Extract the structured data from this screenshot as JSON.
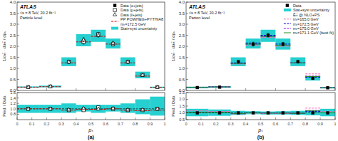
{
  "chart_data": [
    {
      "type": "errorbar",
      "y_label": "1/σₜₜ̄ · dσₜₜ̄ / dpₛ",
      "annotations": [
        "ATLAS",
        "√s = 8 TeV, 20.2 fb⁻¹",
        "Particle level"
      ],
      "xlim": [
        0,
        1
      ],
      "ylim": [
        0,
        4
      ],
      "xticks": [
        0,
        0.2,
        0.4,
        0.6,
        0.8,
        1
      ],
      "yticks": [
        {
          "value": 0,
          "label": "0.0"
        },
        0.5,
        {
          "value": 1,
          "label": "1.0"
        },
        1.5,
        {
          "value": 2,
          "label": "2.0"
        },
        2.5,
        {
          "value": 3,
          "label": "3.0"
        },
        3.5,
        {
          "value": 4,
          "label": "4.0"
        }
      ],
      "tick_labels": "y",
      "legend": "upper right",
      "series": [
        {
          "name": "Data (e+jets)",
          "type": "scatter",
          "marker": "square",
          "color": "#000000",
          "x": [
            0.075,
            0.225,
            0.35,
            0.45,
            0.55,
            0.65,
            0.75,
            0.85,
            0.95
          ],
          "values": [
            0.15,
            0.18,
            1.3,
            2.25,
            2.5,
            2.1,
            1.3,
            0.7,
            0.15
          ],
          "errors": [
            0.02,
            0.02,
            0.07,
            0.1,
            0.08,
            0.08,
            0.07,
            0.04,
            0.02
          ]
        },
        {
          "name": "Data (μ+jets)",
          "type": "scatter",
          "marker": "open-square",
          "color": "#000000",
          "x": [
            0.075,
            0.225,
            0.35,
            0.45,
            0.55,
            0.65,
            0.75,
            0.85,
            0.95
          ],
          "values": [
            0.15,
            0.18,
            1.3,
            2.2,
            2.55,
            2.1,
            1.3,
            0.7,
            0.15
          ],
          "errors": [
            0.02,
            0.02,
            0.07,
            0.1,
            0.08,
            0.08,
            0.07,
            0.04,
            0.02
          ]
        },
        {
          "name": "Data (ℓ+jets)",
          "type": "scatter",
          "marker": "open-triangle",
          "color": "#000000",
          "x": [
            0.075,
            0.225,
            0.35,
            0.45,
            0.55,
            0.65,
            0.75,
            0.85,
            0.95
          ],
          "values": [
            0.15,
            0.18,
            1.3,
            2.3,
            2.5,
            2.15,
            1.3,
            0.7,
            0.15
          ],
          "errors": [
            0.015,
            0.015,
            0.06,
            0.09,
            0.07,
            0.07,
            0.06,
            0.035,
            0.015
          ]
        },
        {
          "name": "PP POWHEG+PYTHIA8\nmₜ=172.5 GeV",
          "type": "step",
          "line_style": "dashed",
          "color": "#CC0000",
          "bins": [
            0.0,
            0.15,
            0.3,
            0.4,
            0.5,
            0.6,
            0.7,
            0.8,
            0.9,
            1.0
          ],
          "values": [
            0.15,
            0.17,
            1.25,
            2.2,
            2.45,
            2.1,
            1.25,
            0.65,
            0.14
          ]
        },
        {
          "name": "Stat+syst uncertainty",
          "type": "band",
          "color": "#00C8C8",
          "bins": [
            0.0,
            0.15,
            0.3,
            0.4,
            0.5,
            0.6,
            0.7,
            0.8,
            0.9,
            1.0
          ],
          "low": [
            0.12,
            0.14,
            1.1,
            2.0,
            2.2,
            1.9,
            1.1,
            0.55,
            0.11
          ],
          "high": [
            0.18,
            0.22,
            1.5,
            2.55,
            2.75,
            2.35,
            1.5,
            0.85,
            0.17
          ]
        }
      ]
    },
    {
      "type": "errorbar",
      "x_label": "pₛ",
      "y_label": "Pred. / Data",
      "annotations": [
        "(a)"
      ],
      "xlim": [
        0,
        1
      ],
      "ylim": [
        0.6,
        1.6
      ],
      "xticks": [
        0,
        0.1,
        0.2,
        0.3,
        0.4,
        0.5,
        0.6,
        0.7,
        0.8,
        0.9,
        1
      ],
      "yticks": [
        0.8,
        {
          "value": 1,
          "label": "1.0"
        },
        1.2,
        1.4,
        1.6
      ],
      "reference_lines": [
        1.0
      ],
      "series": [
        {
          "type": "scatter",
          "marker": "square",
          "color": "#000000",
          "x": [
            0.075,
            0.225,
            0.35,
            0.45,
            0.55,
            0.65,
            0.75,
            0.85,
            0.95
          ],
          "values": [
            1.0,
            1.0,
            0.95,
            1.0,
            1.05,
            1.0,
            0.95,
            0.95,
            1.0
          ]
        },
        {
          "type": "scatter",
          "marker": "open-square",
          "color": "#000000",
          "x": [
            0.075,
            0.225,
            0.35,
            0.45,
            0.55,
            0.65,
            0.75,
            0.85,
            0.95
          ],
          "values": [
            1.0,
            1.0,
            0.95,
            0.95,
            1.05,
            1.0,
            0.95,
            0.95,
            1.0
          ]
        },
        {
          "type": "scatter",
          "marker": "open-triangle",
          "color": "#000000",
          "x": [
            0.075,
            0.225,
            0.35,
            0.45,
            0.55,
            0.65,
            0.75,
            0.85,
            0.95
          ],
          "values": [
            1.0,
            1.0,
            0.97,
            1.02,
            1.0,
            1.02,
            0.97,
            0.97,
            1.0
          ]
        },
        {
          "type": "step",
          "line_style": "dashed",
          "color": "#CC0000",
          "bins": [
            0.0,
            0.15,
            0.3,
            0.4,
            0.5,
            0.6,
            0.7,
            0.8,
            0.9,
            1.0
          ],
          "values": [
            1.0,
            1.0,
            0.95,
            0.98,
            0.98,
            1.0,
            0.95,
            0.93,
            0.95
          ]
        },
        {
          "type": "band",
          "color": "#00C8C8",
          "bins": [
            0.0,
            0.15,
            0.3,
            0.4,
            0.5,
            0.6,
            0.7,
            0.8,
            0.9,
            1.0
          ],
          "low": [
            0.85,
            0.85,
            0.85,
            0.9,
            0.85,
            0.9,
            0.85,
            0.8,
            0.75
          ],
          "high": [
            1.15,
            1.15,
            1.2,
            1.15,
            1.15,
            1.15,
            1.2,
            1.35,
            1.45
          ]
        }
      ]
    },
    {
      "type": "errorbar",
      "y_label": "1/σₜₜ̄ · dσₜₜ̄ / dpₛ",
      "annotations": [
        "ATLAS",
        "√s = 8 TeV, 20.2 fb⁻¹",
        "Parton level"
      ],
      "xlim": [
        0,
        1
      ],
      "ylim": [
        0,
        4
      ],
      "xticks": [
        0,
        0.2,
        0.4,
        0.6,
        0.8,
        1
      ],
      "yticks": [
        {
          "value": 0,
          "label": "0.0"
        },
        0.5,
        {
          "value": 1,
          "label": "1.0"
        },
        1.5,
        {
          "value": 2,
          "label": "2.0"
        },
        2.5,
        {
          "value": 3,
          "label": "3.0"
        },
        3.5,
        {
          "value": 4,
          "label": "4.0"
        }
      ],
      "tick_labels": "y",
      "legend": "upper right",
      "series": [
        {
          "name": "Data",
          "type": "scatter",
          "marker": "square",
          "color": "#000000",
          "x": [
            0.075,
            0.225,
            0.35,
            0.45,
            0.55,
            0.65,
            0.75,
            0.85,
            0.95
          ],
          "values": [
            0.13,
            0.15,
            1.3,
            2.1,
            2.5,
            2.1,
            1.3,
            0.55,
            0.12
          ],
          "errors": [
            0.02,
            0.02,
            0.06,
            0.09,
            0.08,
            0.08,
            0.06,
            0.03,
            0.015
          ]
        },
        {
          "name": "Stat+syst uncertainty",
          "type": "band",
          "color": "#00C8C8",
          "bins": [
            0.0,
            0.15,
            0.3,
            0.4,
            0.5,
            0.6,
            0.7,
            0.8,
            0.9,
            1.0
          ],
          "low": [
            0.1,
            0.12,
            1.1,
            1.9,
            2.2,
            1.85,
            1.1,
            0.45,
            0.09
          ],
          "high": [
            0.17,
            0.19,
            1.5,
            2.35,
            2.75,
            2.35,
            1.5,
            0.65,
            0.16
          ]
        },
        {
          "name": "Êₜₜ̄ @ NLO+PS :",
          "type": "text"
        },
        {
          "name": "mₜ=165.0 GeV",
          "type": "step",
          "line_style": "dashed",
          "color": "#FF69B4",
          "bins": [
            0.0,
            0.15,
            0.3,
            0.4,
            0.5,
            0.6,
            0.7,
            0.8,
            0.9,
            1.0
          ],
          "values": [
            0.15,
            0.17,
            1.2,
            2.05,
            2.4,
            2.0,
            1.25,
            0.75,
            0.13
          ]
        },
        {
          "name": "mₜ=172.5 GeV",
          "type": "step",
          "line_style": "dashed",
          "color": "#0000CD",
          "bins": [
            0.0,
            0.15,
            0.3,
            0.4,
            0.5,
            0.6,
            0.7,
            0.8,
            0.9,
            1.0
          ],
          "values": [
            0.14,
            0.16,
            1.25,
            2.15,
            2.5,
            2.1,
            1.25,
            0.6,
            0.12
          ]
        },
        {
          "name": "mₜ=175.0 GeV",
          "type": "step",
          "line_style": "dashed",
          "color": "#8B00FF",
          "bins": [
            0.0,
            0.15,
            0.3,
            0.4,
            0.5,
            0.6,
            0.7,
            0.8,
            0.9,
            1.0
          ],
          "values": [
            0.14,
            0.16,
            1.22,
            2.1,
            2.45,
            2.05,
            1.25,
            0.65,
            0.12
          ]
        },
        {
          "name": "mₜ=171.1 GeV (best fit)",
          "type": "step",
          "line_style": "solid",
          "color": "#228B22",
          "bins": [
            0.0,
            0.15,
            0.3,
            0.4,
            0.5,
            0.6,
            0.7,
            0.8,
            0.9,
            1.0
          ],
          "values": [
            0.14,
            0.16,
            1.22,
            2.1,
            2.45,
            2.05,
            1.25,
            0.63,
            0.12
          ]
        }
      ]
    },
    {
      "type": "errorbar",
      "x_label": "pₛ",
      "y_label": "Pred. / Data",
      "annotations": [
        "(b)"
      ],
      "xlim": [
        0,
        1
      ],
      "ylim": [
        0.5,
        2.5
      ],
      "xticks": [
        0,
        0.1,
        0.2,
        0.3,
        0.4,
        0.5,
        0.6,
        0.7,
        0.8,
        0.9,
        1
      ],
      "yticks": [
        0.5,
        {
          "value": 1,
          "label": "1.0"
        },
        1.5,
        {
          "value": 2,
          "label": "2.0"
        },
        2.5
      ],
      "reference_lines": [
        1.0
      ],
      "series": [
        {
          "type": "scatter",
          "marker": "square",
          "color": "#000000",
          "x": [
            0.075,
            0.225,
            0.35,
            0.45,
            0.55,
            0.65,
            0.75,
            0.85,
            0.95
          ],
          "values": [
            1.0,
            1.0,
            1.0,
            1.0,
            1.0,
            1.0,
            1.0,
            1.0,
            1.0
          ]
        },
        {
          "type": "band",
          "color": "#00C8C8",
          "bins": [
            0.0,
            0.15,
            0.3,
            0.4,
            0.5,
            0.6,
            0.7,
            0.8,
            0.9,
            1.0
          ],
          "low": [
            0.75,
            0.78,
            0.85,
            0.9,
            0.88,
            0.88,
            0.85,
            0.82,
            0.75
          ],
          "high": [
            1.3,
            1.25,
            1.15,
            1.12,
            1.1,
            1.12,
            1.15,
            1.18,
            1.3
          ]
        },
        {
          "type": "step",
          "line_style": "dashed",
          "color": "#FF69B4",
          "bins": [
            0.0,
            0.15,
            0.3,
            0.4,
            0.5,
            0.6,
            0.7,
            0.8,
            0.9,
            1.0
          ],
          "values": [
            1.15,
            1.1,
            0.93,
            0.98,
            0.96,
            0.95,
            0.96,
            1.35,
            1.1
          ]
        },
        {
          "type": "step",
          "line_style": "dashed",
          "color": "#0000CD",
          "bins": [
            0.0,
            0.15,
            0.3,
            0.4,
            0.5,
            0.6,
            0.7,
            0.8,
            0.9,
            1.0
          ],
          "values": [
            1.05,
            1.05,
            0.96,
            1.02,
            1.0,
            1.0,
            0.96,
            1.1,
            1.0
          ]
        },
        {
          "type": "step",
          "line_style": "dashed",
          "color": "#8B00FF",
          "bins": [
            0.0,
            0.15,
            0.3,
            0.4,
            0.5,
            0.6,
            0.7,
            0.8,
            0.9,
            1.0
          ],
          "values": [
            1.05,
            1.05,
            0.94,
            1.0,
            0.98,
            0.98,
            0.96,
            1.18,
            1.0
          ]
        },
        {
          "type": "step",
          "line_style": "solid",
          "color": "#228B22",
          "bins": [
            0.0,
            0.15,
            0.3,
            0.4,
            0.5,
            0.6,
            0.7,
            0.8,
            0.9,
            1.0
          ],
          "values": [
            1.05,
            1.05,
            0.94,
            1.0,
            0.98,
            0.98,
            0.96,
            1.15,
            1.0
          ]
        }
      ]
    }
  ]
}
